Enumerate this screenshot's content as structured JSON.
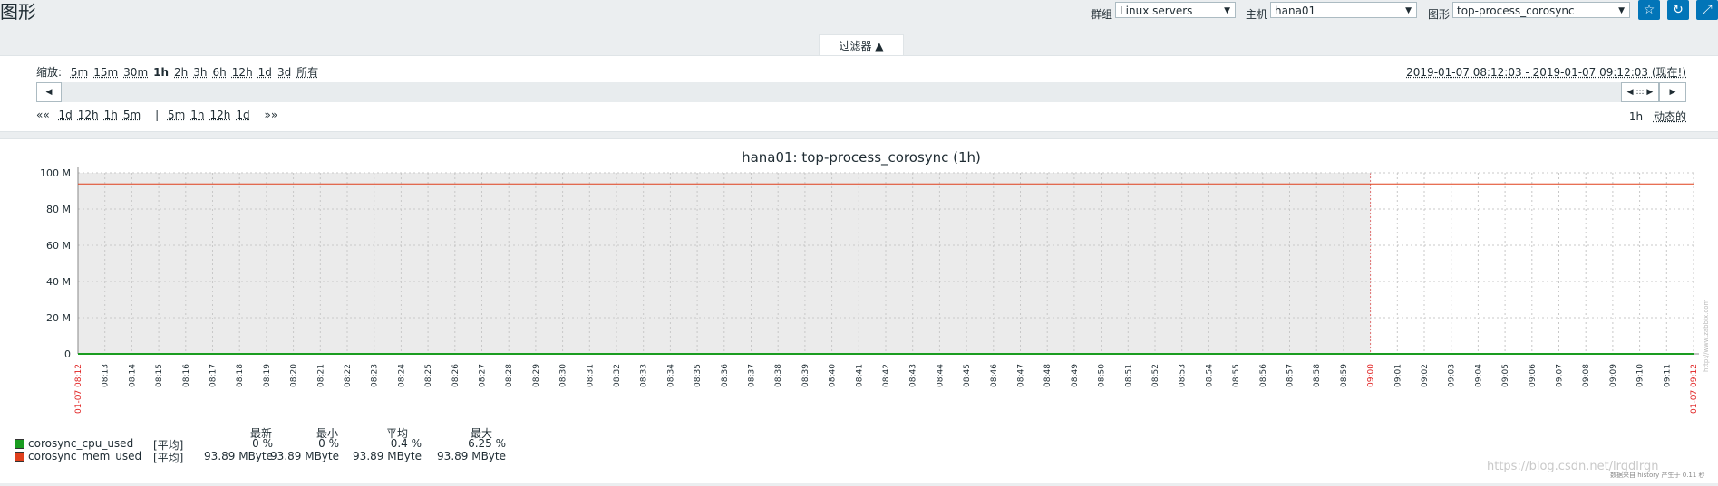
{
  "header": {
    "title": "图形",
    "group_label": "群组",
    "group_value": "Linux servers",
    "host_label": "主机",
    "host_value": "hana01",
    "graph_label": "图形",
    "graph_value": "top-process_corosync"
  },
  "filter": {
    "tab_label": "过滤器 ▲",
    "zoom_label": "缩放:",
    "zoom_options": [
      "5m",
      "15m",
      "30m",
      "1h",
      "2h",
      "3h",
      "6h",
      "12h",
      "1d",
      "3d",
      "所有"
    ],
    "zoom_active": "1h",
    "range_text": "2019-01-07 08:12:03 - 2019-01-07 09:12:03 (现在!)",
    "shift_back_label": "««",
    "shift_back": [
      "1d",
      "12h",
      "1h",
      "5m"
    ],
    "shift_sep": "|",
    "shift_fwd": [
      "5m",
      "1h",
      "12h",
      "1d"
    ],
    "shift_fwd_label": "»»",
    "period_label": "1h",
    "dynamic_label": "动态的"
  },
  "chart_data": {
    "type": "line",
    "title": "hana01: top-process_corosync (1h)",
    "y_ticks": [
      "100 M",
      "80 M",
      "60 M",
      "40 M",
      "20 M",
      "0"
    ],
    "ylim": [
      0,
      100
    ],
    "x_start_label": "01-07 08:12",
    "x_end_label": "01-07 09:12",
    "x_hour_label": "09:00",
    "x_minute_labels": [
      "08:13",
      "08:14",
      "08:15",
      "08:16",
      "08:17",
      "08:18",
      "08:19",
      "08:20",
      "08:21",
      "08:22",
      "08:23",
      "08:24",
      "08:25",
      "08:26",
      "08:27",
      "08:28",
      "08:29",
      "08:30",
      "08:31",
      "08:32",
      "08:33",
      "08:34",
      "08:35",
      "08:36",
      "08:37",
      "08:38",
      "08:39",
      "08:40",
      "08:41",
      "08:42",
      "08:43",
      "08:44",
      "08:45",
      "08:46",
      "08:47",
      "08:48",
      "08:49",
      "08:50",
      "08:51",
      "08:52",
      "08:53",
      "08:54",
      "08:55",
      "08:56",
      "08:57",
      "08:58",
      "08:59",
      "09:00",
      "09:01",
      "09:02",
      "09:03",
      "09:04",
      "09:05",
      "09:06",
      "09:07",
      "09:08",
      "09:09",
      "09:10",
      "09:11"
    ],
    "series": [
      {
        "name": "corosync_cpu_used",
        "color": "#1a9c20",
        "value_level": 0
      },
      {
        "name": "corosync_mem_used",
        "color": "#e0401c",
        "value_level": 93.89
      }
    ],
    "shaded_until": "09:00",
    "side_note": "http://www.zabbix.com"
  },
  "legend": {
    "headers": [
      "最新",
      "最小",
      "平均",
      "最大"
    ],
    "rows": [
      {
        "name": "corosync_cpu_used",
        "fn": "[平均]",
        "last": "0 %",
        "min": "0 %",
        "avg": "0.4 %",
        "max": "6.25 %",
        "color": "#1a9c20"
      },
      {
        "name": "corosync_mem_used",
        "fn": "[平均]",
        "last": "93.89 MByte",
        "min": "93.89 MByte",
        "avg": "93.89 MByte",
        "max": "93.89 MByte",
        "color": "#e0401c"
      }
    ]
  },
  "footer": {
    "watermark": "https://blog.csdn.net/lrgdlrgn",
    "note": "数据来自 history 产生于 0.11 秒"
  }
}
